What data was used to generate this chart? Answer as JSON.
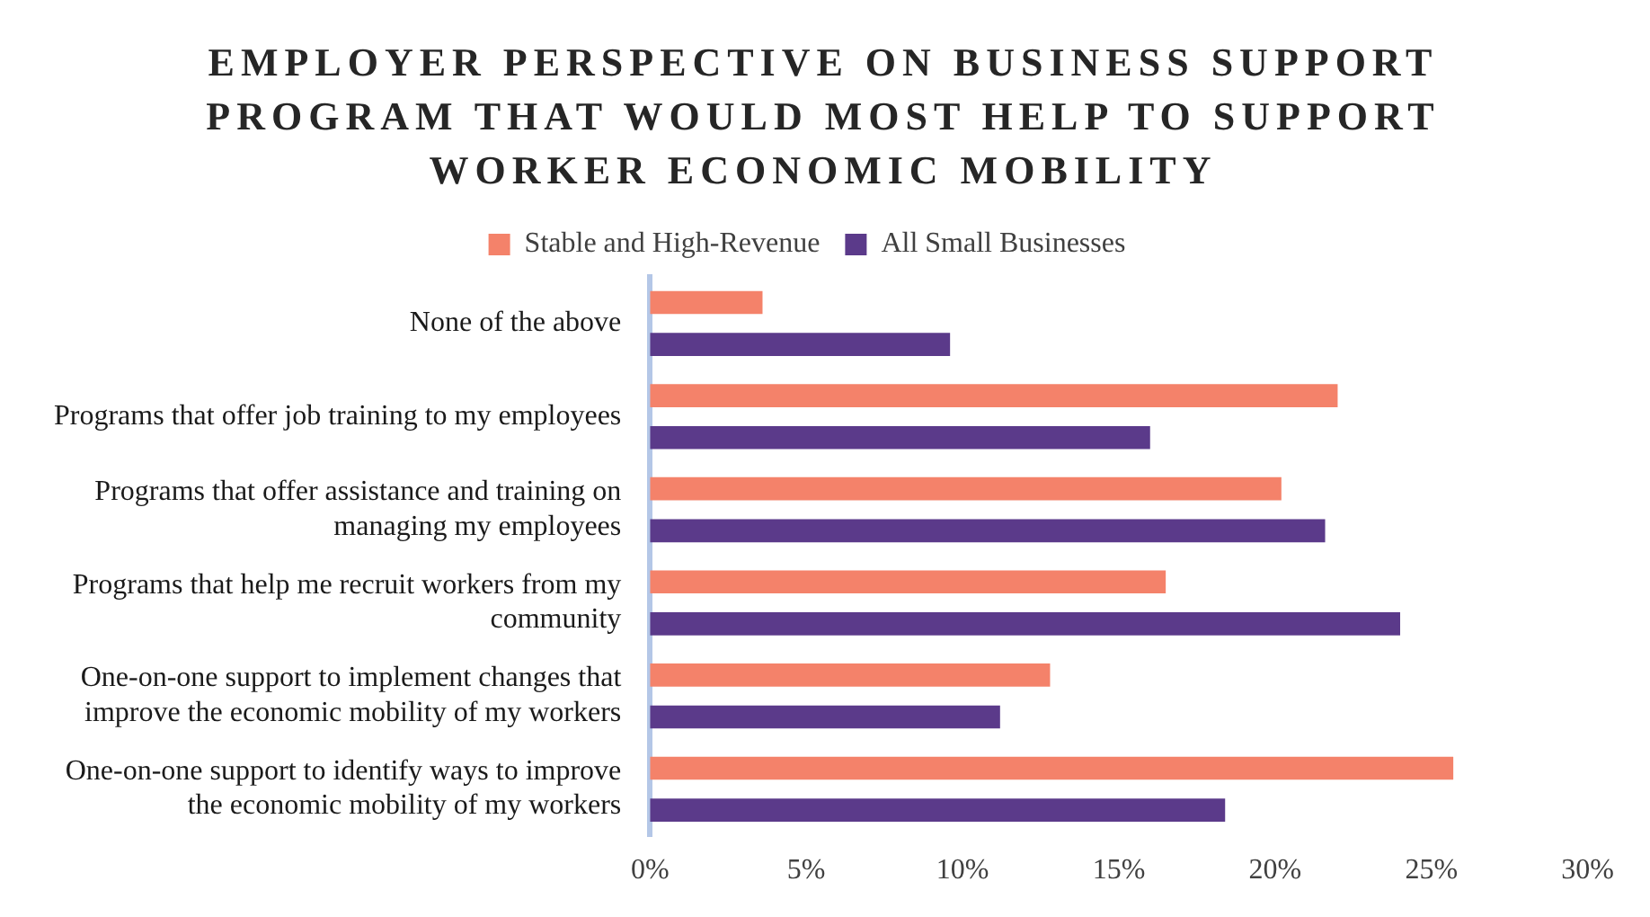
{
  "chart_data": {
    "type": "bar",
    "orientation": "horizontal",
    "title": "EMPLOYER PERSPECTIVE ON BUSINESS SUPPORT PROGRAM THAT WOULD MOST HELP TO SUPPORT WORKER ECONOMIC MOBILITY",
    "categories": [
      "None of the above",
      "Programs that offer job training to my employees",
      "Programs that offer assistance and training on managing my employees",
      "Programs that help me recruit workers from my community",
      "One-on-one support to implement changes that improve the economic mobility of my workers",
      "One-on-one support to identify ways to improve the economic mobility of my workers"
    ],
    "series": [
      {
        "name": "Stable and High-Revenue",
        "color": "#f4826a",
        "values": [
          3.6,
          22.0,
          20.2,
          16.5,
          12.8,
          25.7
        ]
      },
      {
        "name": "All Small Businesses",
        "color": "#5b3a8a",
        "values": [
          9.6,
          16.0,
          21.6,
          24.0,
          11.2,
          18.4
        ]
      }
    ],
    "xlim": [
      0,
      30
    ],
    "xticks": [
      {
        "value": 0,
        "label": "0%"
      },
      {
        "value": 5,
        "label": "5%"
      },
      {
        "value": 10,
        "label": "10%"
      },
      {
        "value": 15,
        "label": "15%"
      },
      {
        "value": 20,
        "label": "20%"
      },
      {
        "value": 25,
        "label": "25%"
      },
      {
        "value": 30,
        "label": "30%"
      }
    ],
    "grid": false,
    "legend": "top"
  }
}
